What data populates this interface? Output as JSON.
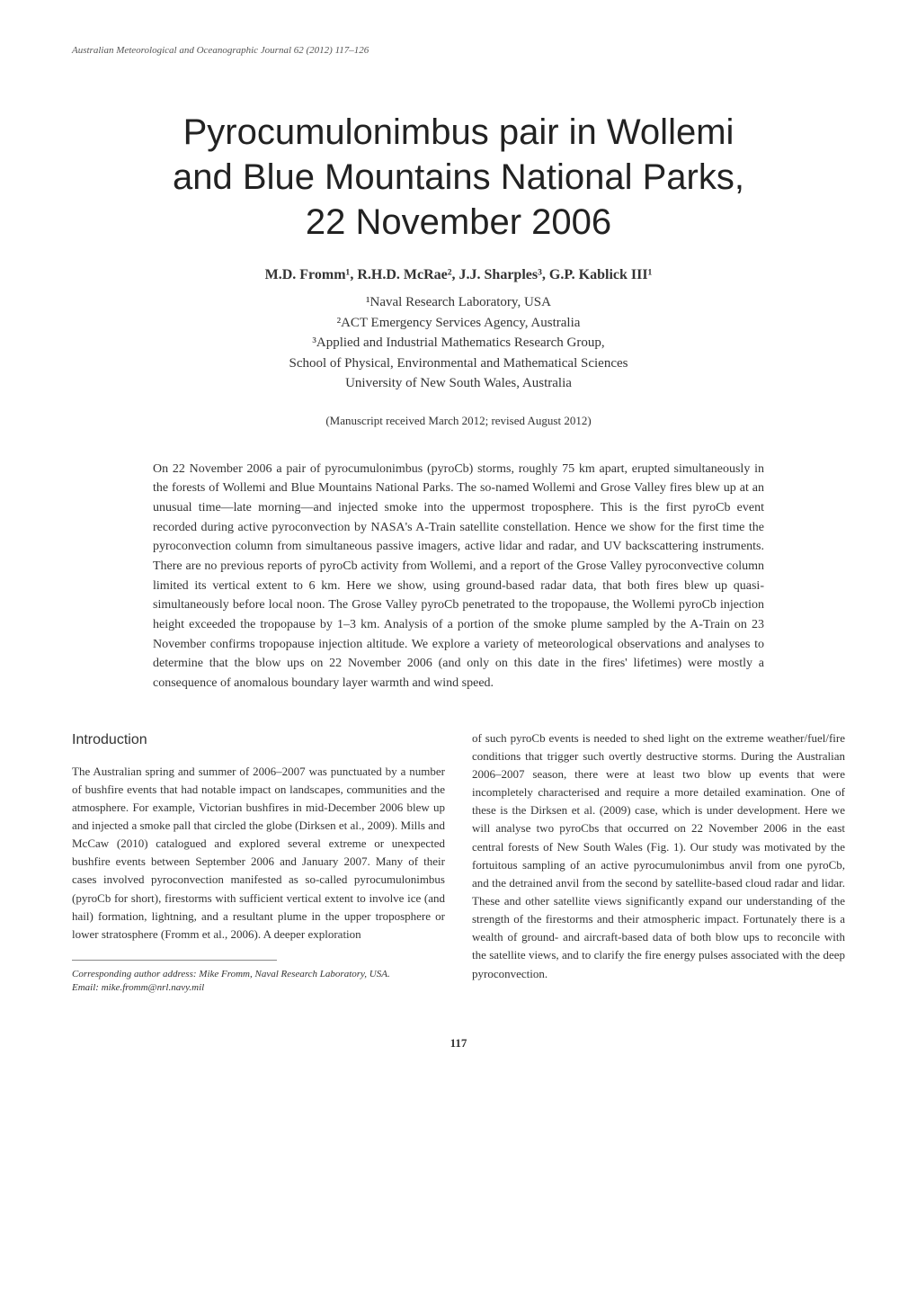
{
  "journal_header": "Australian Meteorological and Oceanographic Journal 62 (2012) 117–126",
  "title_line1": "Pyrocumulonimbus pair in Wollemi",
  "title_line2": "and Blue Mountains National Parks,",
  "title_line3": "22 November 2006",
  "authors_html": "M.D. Fromm¹, R.H.D. McRae², J.J. Sharples³, G.P. Kablick III¹",
  "affiliations": {
    "a1": "¹Naval Research Laboratory, USA",
    "a2": "²ACT Emergency Services Agency, Australia",
    "a3": "³Applied and Industrial Mathematics Research Group,",
    "a4": "School of Physical, Environmental and Mathematical Sciences",
    "a5": "University of New South Wales, Australia"
  },
  "manuscript_note": "(Manuscript received March 2012; revised August 2012)",
  "abstract": "On 22 November 2006 a pair of pyrocumulonimbus (pyroCb) storms, roughly 75 km apart, erupted simultaneously in the forests of Wollemi and Blue Mountains National Parks. The so-named Wollemi and Grose Valley fires blew up at an unusual time—late morning—and injected smoke into the uppermost troposphere. This is the first pyroCb event recorded during active pyroconvection by NASA's A-Train satellite constellation. Hence we show for the first time the pyroconvection column from simultaneous passive imagers, active lidar and radar, and UV backscattering instruments. There are no previous reports of pyroCb activity from Wollemi, and a report of the Grose Valley pyroconvective column limited its vertical extent to 6 km. Here we show, using ground-based radar data, that both fires blew up quasi-simultaneously before local noon. The Grose Valley pyroCb penetrated to the tropopause, the Wollemi pyroCb injection height exceeded the tropopause by 1–3 km. Analysis of a portion of the smoke plume sampled by the A-Train on 23 November confirms tropopause injection altitude. We explore a variety of meteorological observations and analyses to determine that the blow ups on 22 November 2006 (and only on this date in the fires' lifetimes) were mostly a consequence of anomalous boundary layer warmth and wind speed.",
  "section_heading": "Introduction",
  "col1_para": "The Australian spring and summer of 2006–2007 was punctuated by a number of bushfire events that had notable impact on landscapes, communities and the atmosphere. For example, Victorian bushfires in mid-December 2006 blew up and injected a smoke pall that circled the globe (Dirksen et al., 2009). Mills and McCaw (2010) catalogued and explored several extreme or unexpected bushfire events between September 2006 and January 2007. Many of their cases involved pyroconvection manifested as so-called pyrocumulonimbus (pyroCb for short), firestorms with sufficient vertical extent to involve ice (and hail) formation, lightning, and a resultant plume in the upper troposphere or lower stratosphere (Fromm et al., 2006). A deeper exploration",
  "footnote_label": "Corresponding author address:",
  "footnote_rest": " Mike Fromm, Naval Research Laboratory, USA.",
  "footnote_email": "Email: mike.fromm@nrl.navy.mil",
  "col2_para": "of such pyroCb events is needed to shed light on the extreme weather/fuel/fire conditions that trigger such overtly destructive storms. During the Australian 2006–2007 season, there were at least two blow up events that were incompletely characterised and require a more detailed examination. One of these is the Dirksen et al. (2009) case, which is under development. Here we will analyse two pyroCbs that occurred on 22 November 2006 in the east central forests of New South Wales (Fig. 1). Our study was motivated by the fortuitous sampling of an active pyrocumulonimbus anvil from one pyroCb, and the detrained anvil from the second by satellite-based cloud radar and lidar. These and other satellite views significantly expand our understanding of the strength of the firestorms and their atmospheric impact. Fortunately there is a wealth of ground- and aircraft-based data of both blow ups to reconcile with the satellite views, and to clarify the fire energy pulses associated with the deep pyroconvection.",
  "page_number": "117",
  "colors": {
    "text": "#333333",
    "heading": "#222222",
    "background": "#ffffff",
    "hr": "#888888"
  },
  "fonts": {
    "body_family": "Georgia, Times New Roman, serif",
    "title_family": "Arial, Helvetica, sans-serif",
    "title_size_pt": 30,
    "authors_size_pt": 12,
    "body_size_pt": 10,
    "abstract_size_pt": 10.5,
    "footnote_size_pt": 8
  }
}
